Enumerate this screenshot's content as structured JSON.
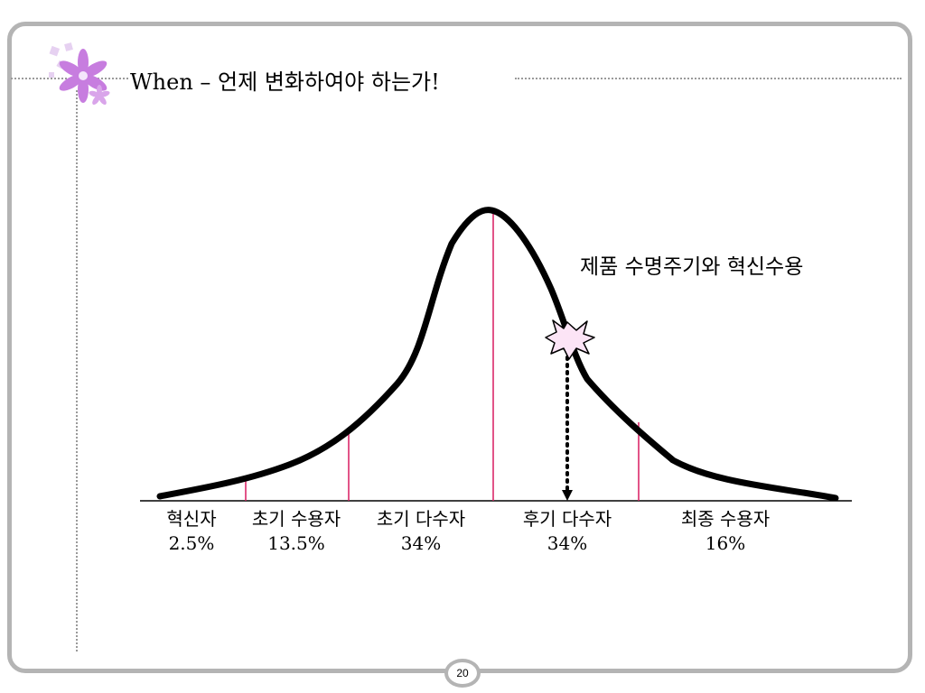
{
  "slide": {
    "title": "When – 언제 변화하여야 하는가!",
    "page_number": "20"
  },
  "diagram": {
    "caption": "제품 수명주기와 혁신수용",
    "segments": [
      {
        "name": "혁신자",
        "percent": "2.5%"
      },
      {
        "name": "초기 수용자",
        "percent": "13.5%"
      },
      {
        "name": "초기 다수자",
        "percent": "34%"
      },
      {
        "name": "후기 다수자",
        "percent": "34%"
      },
      {
        "name": "최종 수용자",
        "percent": "16%"
      }
    ],
    "colors": {
      "curve": "#000000",
      "divider_lines": "#d81b60",
      "burst_fill": "#fce4f6",
      "frame": "#b4b4b4",
      "flower": "#c77ddf"
    }
  }
}
